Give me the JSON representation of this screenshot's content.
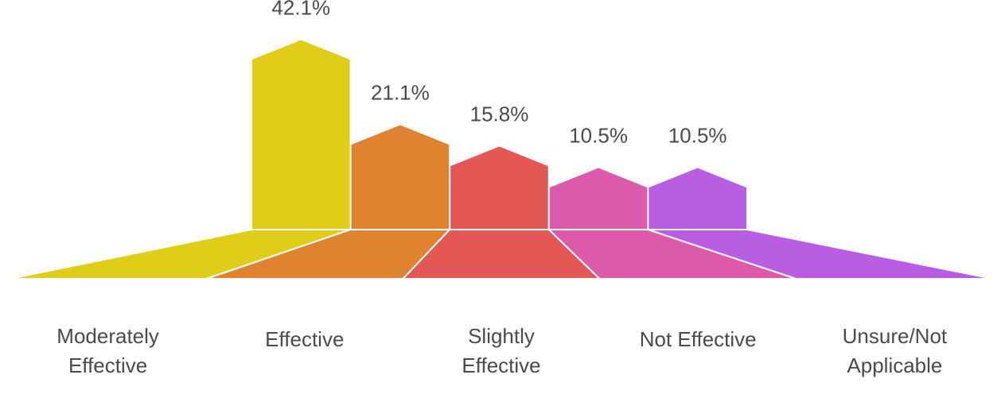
{
  "chart_data": {
    "type": "bar",
    "categories": [
      "Moderately Effective",
      "Effective",
      "Slightly Effective",
      "Not Effective",
      "Unsure/Not Applicable"
    ],
    "category_lines": [
      [
        "Moderately",
        "Effective"
      ],
      [
        "Effective"
      ],
      [
        "Slightly",
        "Effective"
      ],
      [
        "Not Effective"
      ],
      [
        "Unsure/Not",
        "Applicable"
      ]
    ],
    "values": [
      42.1,
      21.1,
      15.8,
      10.5,
      10.5
    ],
    "value_labels": [
      "42.1%",
      "21.1%",
      "15.8%",
      "10.5%",
      "10.5%"
    ],
    "unit": "%",
    "colors": [
      "#dfcd18",
      "#df8331",
      "#e35855",
      "#dd59a9",
      "#b95ee3"
    ],
    "title": "",
    "xlabel": "",
    "ylabel": "",
    "grid": false,
    "legend": "none"
  }
}
